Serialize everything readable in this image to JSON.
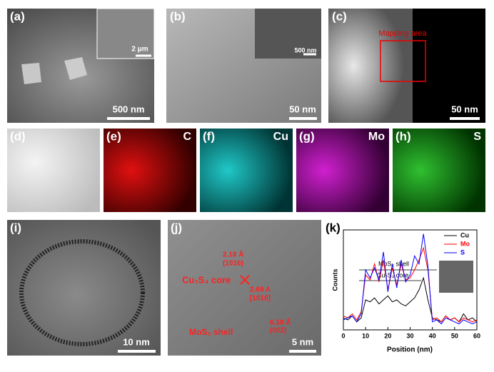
{
  "panels": {
    "a": {
      "label": "(a)",
      "inset_scale": "2 μm",
      "scale": "500 nm"
    },
    "b": {
      "label": "(b)",
      "inset_scale": "500 nm",
      "scale": "50 nm"
    },
    "c": {
      "label": "(c)",
      "box": "Mapping area",
      "scale": "50 nm"
    },
    "d": {
      "label": "(d)"
    },
    "e": {
      "label": "(e)",
      "element": "C"
    },
    "f": {
      "label": "(f)",
      "element": "Cu"
    },
    "g": {
      "label": "(g)",
      "element": "Mo"
    },
    "h": {
      "label": "(h)",
      "element": "S"
    },
    "i": {
      "label": "(i)",
      "scale": "10 nm"
    },
    "j": {
      "label": "(j)",
      "d1": "2.18 Å",
      "p1": "(1016)",
      "core": "Cu₇S₄ core",
      "d2": "2.69 A",
      "p2": "[1010]",
      "shell": "MoS₂ shell",
      "d3": "6.18 Å",
      "p3": "(002)",
      "scale": "5 nm"
    },
    "k": {
      "label": "(k)"
    }
  },
  "chart_data": {
    "type": "line",
    "x_label": "Position (nm)",
    "y_label": "Counts",
    "annotations": [
      "MoS₂ shell",
      "Cu₇S₄ core"
    ],
    "x": [
      0,
      2,
      4,
      6,
      8,
      10,
      12,
      14,
      16,
      18,
      20,
      22,
      24,
      26,
      28,
      30,
      32,
      34,
      36,
      38,
      40,
      42,
      44,
      46,
      48,
      50,
      52,
      54,
      56,
      58,
      60
    ],
    "series": [
      {
        "name": "Cu",
        "color": "#000000",
        "values": [
          12,
          10,
          14,
          8,
          12,
          30,
          28,
          32,
          26,
          30,
          34,
          28,
          30,
          26,
          24,
          28,
          32,
          40,
          52,
          30,
          12,
          10,
          8,
          14,
          10,
          12,
          8,
          16,
          10,
          12,
          8
        ]
      },
      {
        "name": "Mo",
        "color": "#ff0000",
        "values": [
          14,
          12,
          16,
          10,
          18,
          55,
          50,
          66,
          48,
          70,
          40,
          62,
          45,
          66,
          50,
          52,
          60,
          70,
          82,
          60,
          10,
          12,
          8,
          14,
          10,
          12,
          8,
          12,
          10,
          8,
          10
        ]
      },
      {
        "name": "S",
        "color": "#0000ff",
        "values": [
          10,
          12,
          14,
          8,
          16,
          60,
          52,
          62,
          50,
          78,
          38,
          66,
          42,
          70,
          48,
          55,
          74,
          66,
          96,
          64,
          8,
          10,
          6,
          12,
          10,
          8,
          6,
          10,
          8,
          6,
          8
        ]
      }
    ],
    "xlim": [
      0,
      60
    ],
    "xticks": [
      0,
      10,
      20,
      30,
      40,
      50,
      60
    ],
    "ylim": [
      0,
      100
    ]
  }
}
